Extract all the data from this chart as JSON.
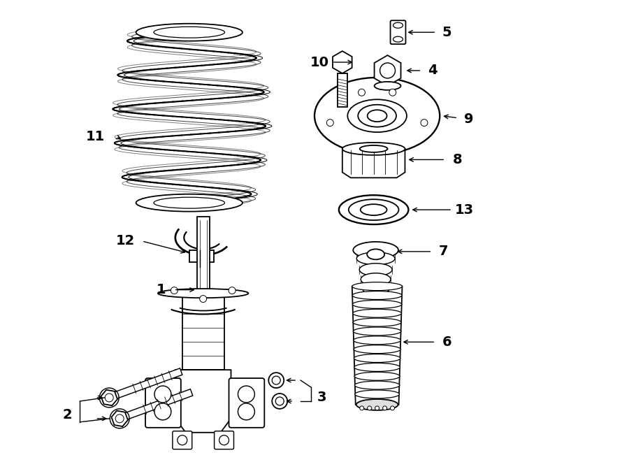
{
  "bg_color": "#ffffff",
  "line_color": "#000000",
  "fig_width": 9.0,
  "fig_height": 6.61,
  "dpi": 100,
  "lw": 1.3
}
